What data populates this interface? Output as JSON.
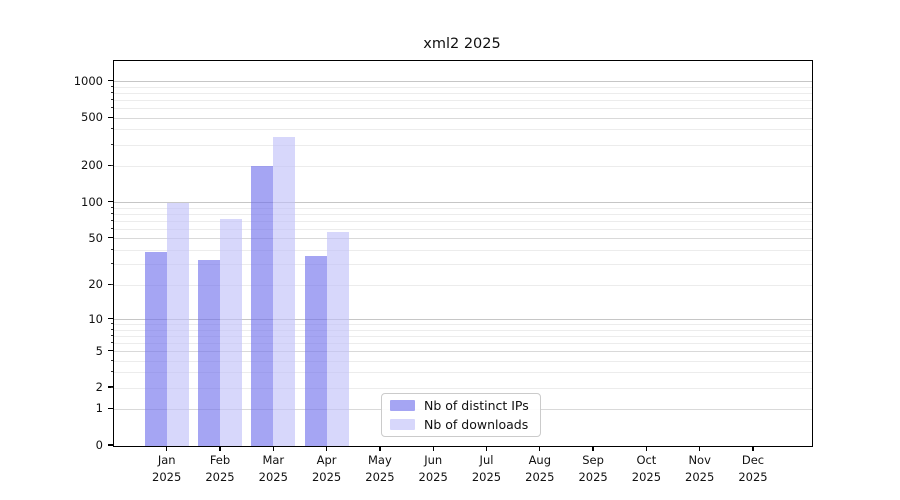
{
  "chart_data": {
    "type": "bar",
    "title": "xml2 2025",
    "categories": [
      "Jan 2025",
      "Feb 2025",
      "Mar 2025",
      "Apr 2025",
      "May 2025",
      "Jun 2025",
      "Jul 2025",
      "Aug 2025",
      "Sep 2025",
      "Oct 2025",
      "Nov 2025",
      "Dec 2025"
    ],
    "series": [
      {
        "name": "Nb of distinct IPs",
        "color": "rgba(110,110,235,0.62)",
        "values": [
          39,
          33,
          200,
          36,
          0,
          0,
          0,
          0,
          0,
          0,
          0,
          0
        ]
      },
      {
        "name": "Nb of downloads",
        "color": "rgba(190,190,248,0.62)",
        "values": [
          100,
          73,
          350,
          57,
          0,
          0,
          0,
          0,
          0,
          0,
          0,
          0
        ]
      }
    ],
    "xlabel": "",
    "ylabel": "",
    "yscale": "log1p",
    "ylim": [
      0,
      1500
    ],
    "y_ticks": [
      1000,
      500,
      200,
      100,
      50,
      20,
      10,
      5,
      2,
      1,
      0
    ],
    "y_minor_gridlines": [
      2,
      3,
      4,
      6,
      7,
      8,
      9,
      20,
      30,
      40,
      60,
      70,
      80,
      90,
      200,
      300,
      400,
      600,
      700,
      800,
      900
    ],
    "grid": true,
    "legend_position": "lower center-left",
    "colors": {
      "axis": "#000000",
      "major_grid": "#c6c6c6",
      "minor_grid": "#ececec"
    }
  }
}
